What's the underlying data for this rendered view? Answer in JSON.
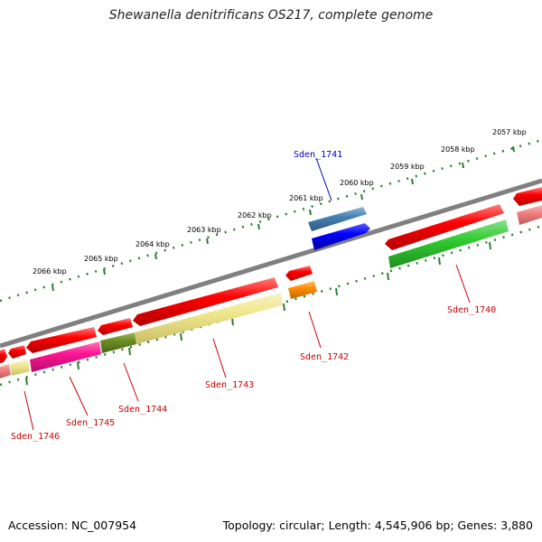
{
  "title": "Shewanella denitrificans OS217, complete genome",
  "footer": {
    "accession": "Accession: NC_007954",
    "summary": "Topology: circular; Length: 4,545,906 bp; Genes: 3,880"
  },
  "scale_ticks": [
    "2057 kbp",
    "2058 kbp",
    "2059 kbp",
    "2060 kbp",
    "2061 kbp",
    "2062 kbp",
    "2063 kbp",
    "2064 kbp",
    "2065 kbp",
    "2066 kbp"
  ],
  "gene_labels": {
    "sden_1741": "Sden_1741",
    "sden_1740": "Sden_1740",
    "sden_1742": "Sden_1742",
    "sden_1743": "Sden_1743",
    "sden_1744": "Sden_1744",
    "sden_1745": "Sden_1745",
    "sden_1746": "Sden_1746"
  },
  "colors": {
    "backbone": "#808080",
    "forward_cds": "#ff0000",
    "label_red": "#cc0000",
    "label_blue": "#0000cc",
    "blue_gene": "#0000ff",
    "steelblue_gene": "#4682b4",
    "green_gene": "#32cd32",
    "olive_gene": "#6b8e23",
    "khaki_gene": "#f0e68c",
    "magenta_gene": "#ff1493",
    "orange_gene": "#ff8c00",
    "pink_gene": "#f08080",
    "tick_green": "#2e7d32"
  }
}
